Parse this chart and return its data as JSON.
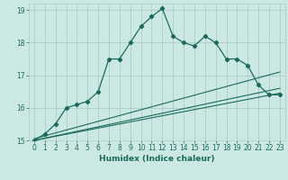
{
  "xlabel": "Humidex (Indice chaleur)",
  "background_color": "#cce8e4",
  "grid_color": "#aaccc8",
  "line_color": "#1a6b5a",
  "xlim": [
    -0.5,
    23.5
  ],
  "ylim": [
    15,
    19.2
  ],
  "xticks": [
    0,
    1,
    2,
    3,
    4,
    5,
    6,
    7,
    8,
    9,
    10,
    11,
    12,
    13,
    14,
    15,
    16,
    17,
    18,
    19,
    20,
    21,
    22,
    23
  ],
  "yticks": [
    15,
    16,
    17,
    18,
    19
  ],
  "series1_x": [
    0,
    1,
    2,
    3,
    4,
    5,
    6,
    7,
    8,
    9,
    10,
    11,
    12,
    13,
    14,
    15,
    16,
    17,
    18,
    19,
    20,
    21,
    22,
    23
  ],
  "series1_y": [
    15.0,
    15.2,
    15.5,
    16.0,
    16.1,
    16.2,
    16.5,
    17.5,
    17.5,
    18.0,
    18.5,
    18.8,
    19.05,
    18.2,
    18.0,
    17.9,
    18.2,
    18.0,
    17.5,
    17.5,
    17.3,
    16.7,
    16.4,
    16.4
  ],
  "trend1_x": [
    0,
    23
  ],
  "trend1_y": [
    15.0,
    16.45
  ],
  "trend2_x": [
    0,
    23
  ],
  "trend2_y": [
    15.0,
    16.6
  ],
  "trend3_x": [
    0,
    23
  ],
  "trend3_y": [
    15.05,
    17.1
  ]
}
